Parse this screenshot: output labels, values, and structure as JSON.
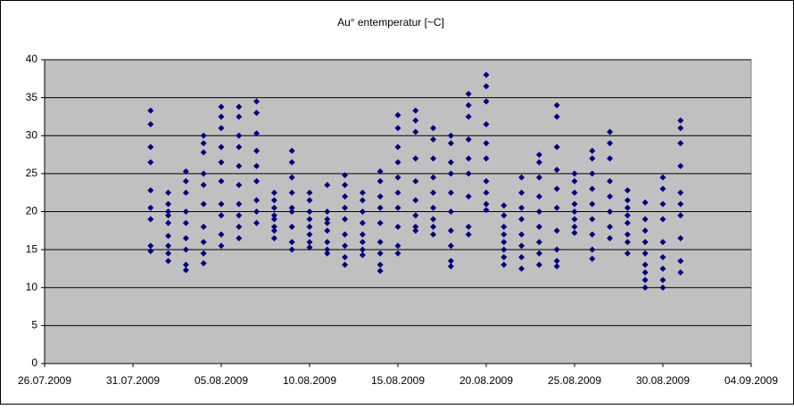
{
  "chart_data": {
    "type": "scatter",
    "title": "Au° entemperatur [~C]",
    "color": "#000080",
    "plot_background": "#c0c0c0",
    "grid": true,
    "xlim": [
      "26.07.2009",
      "04.09.2009"
    ],
    "xticks": [
      "26.07.2009",
      "31.07.2009",
      "05.08.2009",
      "10.08.2009",
      "15.08.2009",
      "20.08.2009",
      "25.08.2009",
      "30.08.2009",
      "04.09.2009"
    ],
    "ylim": [
      0,
      40
    ],
    "yticks": [
      0,
      5,
      10,
      15,
      20,
      25,
      30,
      35,
      40
    ],
    "x": [
      "01.08.2009",
      "01.08.2009",
      "01.08.2009",
      "01.08.2009",
      "01.08.2009",
      "01.08.2009",
      "01.08.2009",
      "01.08.2009",
      "01.08.2009",
      "02.08.2009",
      "02.08.2009",
      "02.08.2009",
      "02.08.2009",
      "02.08.2009",
      "02.08.2009",
      "02.08.2009",
      "02.08.2009",
      "02.08.2009",
      "03.08.2009",
      "03.08.2009",
      "03.08.2009",
      "03.08.2009",
      "03.08.2009",
      "03.08.2009",
      "03.08.2009",
      "03.08.2009",
      "03.08.2009",
      "04.08.2009",
      "04.08.2009",
      "04.08.2009",
      "04.08.2009",
      "04.08.2009",
      "04.08.2009",
      "04.08.2009",
      "04.08.2009",
      "04.08.2009",
      "04.08.2009",
      "05.08.2009",
      "05.08.2009",
      "05.08.2009",
      "05.08.2009",
      "05.08.2009",
      "05.08.2009",
      "05.08.2009",
      "05.08.2009",
      "05.08.2009",
      "05.08.2009",
      "06.08.2009",
      "06.08.2009",
      "06.08.2009",
      "06.08.2009",
      "06.08.2009",
      "06.08.2009",
      "06.08.2009",
      "06.08.2009",
      "06.08.2009",
      "06.08.2009",
      "07.08.2009",
      "07.08.2009",
      "07.08.2009",
      "07.08.2009",
      "07.08.2009",
      "07.08.2009",
      "07.08.2009",
      "07.08.2009",
      "07.08.2009",
      "08.08.2009",
      "08.08.2009",
      "08.08.2009",
      "08.08.2009",
      "08.08.2009",
      "08.08.2009",
      "08.08.2009",
      "08.08.2009",
      "09.08.2009",
      "09.08.2009",
      "09.08.2009",
      "09.08.2009",
      "09.08.2009",
      "09.08.2009",
      "09.08.2009",
      "09.08.2009",
      "09.08.2009",
      "10.08.2009",
      "10.08.2009",
      "10.08.2009",
      "10.08.2009",
      "10.08.2009",
      "10.08.2009",
      "10.08.2009",
      "10.08.2009",
      "11.08.2009",
      "11.08.2009",
      "11.08.2009",
      "11.08.2009",
      "11.08.2009",
      "11.08.2009",
      "11.08.2009",
      "11.08.2009",
      "12.08.2009",
      "12.08.2009",
      "12.08.2009",
      "12.08.2009",
      "12.08.2009",
      "12.08.2009",
      "12.08.2009",
      "12.08.2009",
      "12.08.2009",
      "13.08.2009",
      "13.08.2009",
      "13.08.2009",
      "13.08.2009",
      "13.08.2009",
      "13.08.2009",
      "13.08.2009",
      "13.08.2009",
      "14.08.2009",
      "14.08.2009",
      "14.08.2009",
      "14.08.2009",
      "14.08.2009",
      "14.08.2009",
      "14.08.2009",
      "14.08.2009",
      "14.08.2009",
      "15.08.2009",
      "15.08.2009",
      "15.08.2009",
      "15.08.2009",
      "15.08.2009",
      "15.08.2009",
      "15.08.2009",
      "15.08.2009",
      "15.08.2009",
      "15.08.2009",
      "16.08.2009",
      "16.08.2009",
      "16.08.2009",
      "16.08.2009",
      "16.08.2009",
      "16.08.2009",
      "16.08.2009",
      "16.08.2009",
      "16.08.2009",
      "17.08.2009",
      "17.08.2009",
      "17.08.2009",
      "17.08.2009",
      "17.08.2009",
      "17.08.2009",
      "17.08.2009",
      "17.08.2009",
      "17.08.2009",
      "18.08.2009",
      "18.08.2009",
      "18.08.2009",
      "18.08.2009",
      "18.08.2009",
      "18.08.2009",
      "18.08.2009",
      "18.08.2009",
      "18.08.2009",
      "18.08.2009",
      "19.08.2009",
      "19.08.2009",
      "19.08.2009",
      "19.08.2009",
      "19.08.2009",
      "19.08.2009",
      "19.08.2009",
      "19.08.2009",
      "19.08.2009",
      "20.08.2009",
      "20.08.2009",
      "20.08.2009",
      "20.08.2009",
      "20.08.2009",
      "20.08.2009",
      "20.08.2009",
      "20.08.2009",
      "20.08.2009",
      "20.08.2009",
      "21.08.2009",
      "21.08.2009",
      "21.08.2009",
      "21.08.2009",
      "21.08.2009",
      "21.08.2009",
      "21.08.2009",
      "21.08.2009",
      "22.08.2009",
      "22.08.2009",
      "22.08.2009",
      "22.08.2009",
      "22.08.2009",
      "22.08.2009",
      "22.08.2009",
      "22.08.2009",
      "23.08.2009",
      "23.08.2009",
      "23.08.2009",
      "23.08.2009",
      "23.08.2009",
      "23.08.2009",
      "23.08.2009",
      "23.08.2009",
      "23.08.2009",
      "24.08.2009",
      "24.08.2009",
      "24.08.2009",
      "24.08.2009",
      "24.08.2009",
      "24.08.2009",
      "24.08.2009",
      "24.08.2009",
      "24.08.2009",
      "24.08.2009",
      "25.08.2009",
      "25.08.2009",
      "25.08.2009",
      "25.08.2009",
      "25.08.2009",
      "25.08.2009",
      "25.08.2009",
      "25.08.2009",
      "26.08.2009",
      "26.08.2009",
      "26.08.2009",
      "26.08.2009",
      "26.08.2009",
      "26.08.2009",
      "26.08.2009",
      "26.08.2009",
      "26.08.2009",
      "27.08.2009",
      "27.08.2009",
      "27.08.2009",
      "27.08.2009",
      "27.08.2009",
      "27.08.2009",
      "27.08.2009",
      "27.08.2009",
      "28.08.2009",
      "28.08.2009",
      "28.08.2009",
      "28.08.2009",
      "28.08.2009",
      "28.08.2009",
      "28.08.2009",
      "28.08.2009",
      "29.08.2009",
      "29.08.2009",
      "29.08.2009",
      "29.08.2009",
      "29.08.2009",
      "29.08.2009",
      "29.08.2009",
      "29.08.2009",
      "29.08.2009",
      "30.08.2009",
      "30.08.2009",
      "30.08.2009",
      "30.08.2009",
      "30.08.2009",
      "30.08.2009",
      "30.08.2009",
      "30.08.2009",
      "30.08.2009",
      "31.08.2009",
      "31.08.2009",
      "31.08.2009",
      "31.08.2009",
      "31.08.2009",
      "31.08.2009",
      "31.08.2009",
      "31.08.2009",
      "31.08.2009",
      "31.08.2009"
    ],
    "values": [
      33.3,
      31.5,
      28.5,
      26.5,
      22.8,
      20.5,
      19,
      15.5,
      14.8,
      22.5,
      21,
      20,
      19.5,
      18.5,
      16.8,
      15.5,
      14.5,
      13.5,
      25.3,
      24,
      22.5,
      20,
      18.5,
      16.5,
      15,
      13,
      12.3,
      30,
      29,
      27.8,
      25,
      23.5,
      21,
      18,
      16,
      14.5,
      13.2,
      33.8,
      32.5,
      31,
      28.5,
      26.5,
      24,
      21,
      19.5,
      17,
      15.5,
      33.8,
      32.5,
      30,
      28.5,
      26,
      23.5,
      21,
      19.5,
      18,
      16.5,
      34.5,
      33,
      30.3,
      28,
      26,
      24,
      21.5,
      20,
      18.5,
      22.5,
      21.5,
      20.5,
      19.5,
      19,
      18,
      17.5,
      16.5,
      28,
      26.5,
      24.5,
      22.5,
      20.5,
      20,
      18,
      16,
      15,
      22.5,
      21.5,
      20,
      19,
      18,
      17,
      16,
      15.3,
      23.5,
      20,
      19,
      18.5,
      17.5,
      16,
      15,
      14.5,
      24.8,
      23.5,
      22,
      20.5,
      19,
      17,
      15.5,
      14,
      13,
      22.5,
      21.5,
      20,
      18.5,
      17,
      16,
      15,
      14.3,
      25.3,
      24,
      22,
      20.5,
      18.5,
      16,
      14.5,
      13,
      12.2,
      32.7,
      31,
      28.5,
      26.5,
      24.5,
      22.5,
      20.5,
      18,
      15.5,
      14.5,
      33.3,
      32,
      30.5,
      27,
      24,
      21.5,
      19.5,
      18,
      17.5,
      31,
      29.5,
      27,
      24.5,
      22.5,
      20.5,
      19,
      18,
      17,
      30,
      29,
      26.5,
      25,
      22.5,
      20,
      17.5,
      15.5,
      13.5,
      12.8,
      35.5,
      34,
      32.5,
      29.5,
      27,
      25,
      22,
      18,
      17,
      38,
      36.5,
      34.5,
      31.5,
      29,
      27,
      24,
      22.5,
      21,
      20.2,
      20.8,
      19.5,
      18,
      17,
      16,
      15,
      14,
      13,
      24.5,
      22.5,
      20.5,
      19,
      17,
      15.5,
      14,
      12.5,
      27.5,
      26.5,
      24.5,
      22,
      20,
      18,
      16,
      14.5,
      13,
      34,
      32.5,
      28.5,
      25.5,
      23,
      20.5,
      17.5,
      15,
      13.5,
      12.8,
      25,
      24,
      22.5,
      21,
      20,
      19,
      18,
      17.2,
      28,
      27,
      25,
      23,
      21,
      19,
      17,
      15,
      13.8,
      30.5,
      29,
      27,
      24,
      22,
      20,
      18,
      16.5,
      22.8,
      21.5,
      20.5,
      19.5,
      18.5,
      17,
      16,
      14.5,
      21.2,
      19,
      17.5,
      16,
      14.5,
      13,
      12,
      11,
      10,
      24.5,
      23,
      21,
      19,
      16,
      14,
      12.5,
      11,
      10,
      32,
      31,
      29,
      26,
      22.5,
      21,
      19.5,
      16.5,
      13.5,
      12
    ]
  }
}
